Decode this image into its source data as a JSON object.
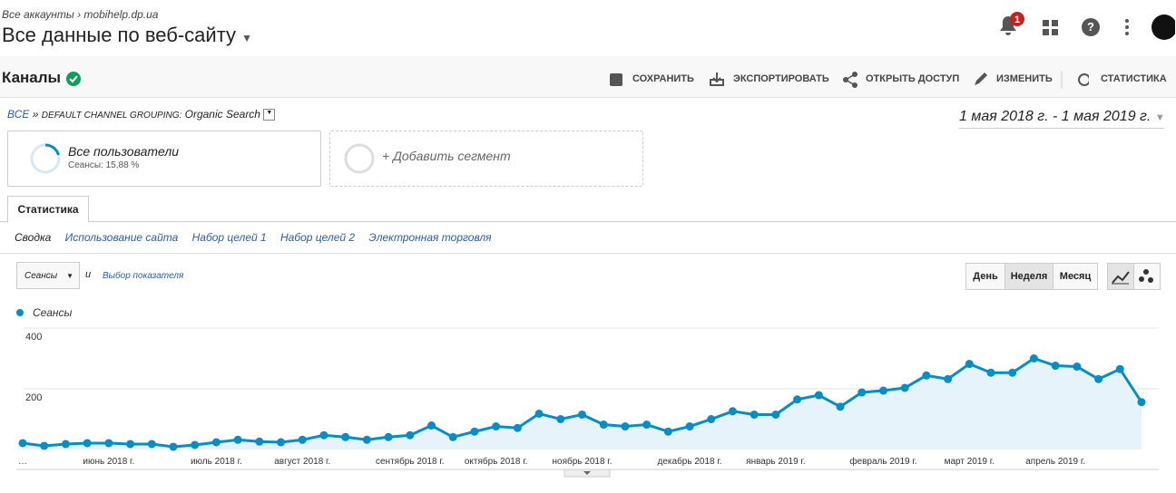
{
  "header": {
    "breadcrumb_root": "Все аккаунты",
    "breadcrumb_site": "mobihelp.dp.ua",
    "view": "Все данные по веб-сайту",
    "notifications": "1"
  },
  "toolbar": {
    "title": "Каналы",
    "actions": [
      "СОХРАНИТЬ",
      "ЭКСПОРТИРОВАТЬ",
      "ОТКРЫТЬ ДОСТУП",
      "ИЗМЕНИТЬ",
      "СТАТИСТИКА"
    ]
  },
  "filter": {
    "root": "ВСЕ",
    "separator": "»",
    "grouping": "DEFAULT CHANNEL GROUPING:",
    "value": "Organic Search"
  },
  "date_range": "1 мая 2018 г. - 1 мая 2019 г.",
  "segments": [
    {
      "name": "Все пользователи",
      "detail": "Сеансы: 15,88 %"
    },
    {
      "name": "+ Добавить сегмент"
    }
  ],
  "tab": "Статистика",
  "subtabs": [
    "Сводка",
    "Использование сайта",
    "Набор целей 1",
    "Набор целей 2",
    "Электронная торговля"
  ],
  "metric": {
    "selector": "Сеансы",
    "conjunction": "и",
    "add": "Выбор показателя"
  },
  "periods": [
    "День",
    "Неделя",
    "Месяц"
  ],
  "chart_data": {
    "type": "line",
    "categories": [
      "…",
      null,
      null,
      null,
      "июнь 2018 г.",
      null,
      null,
      null,
      null,
      "июль 2018 г.",
      null,
      null,
      null,
      "август 2018 г.",
      null,
      null,
      null,
      null,
      "сентябрь 2018 г.",
      null,
      null,
      null,
      "октябрь 2018 г.",
      null,
      null,
      null,
      "ноябрь 2018 г.",
      null,
      null,
      null,
      null,
      "декабрь 2018 г.",
      null,
      null,
      null,
      "январь 2019 г.",
      null,
      null,
      null,
      null,
      "февраль 2019 г.",
      null,
      null,
      null,
      "март 2019 г.",
      null,
      null,
      null,
      "апрель 2019 г.",
      null,
      null,
      null,
      null
    ],
    "series": [
      {
        "name": "Сеансы",
        "color": "#058dc7",
        "values": [
          21,
          12,
          18,
          21,
          21,
          18,
          18,
          9,
          15,
          24,
          32,
          26,
          24,
          32,
          47,
          41,
          32,
          41,
          47,
          79,
          41,
          59,
          76,
          71,
          118,
          100,
          115,
          82,
          76,
          82,
          59,
          76,
          100,
          126,
          115,
          115,
          165,
          179,
          141,
          188,
          194,
          203,
          244,
          232,
          282,
          253,
          253,
          300,
          276,
          273,
          232,
          265,
          156
        ]
      }
    ],
    "ylim": [
      0,
      400
    ],
    "yticks": [
      200,
      400
    ],
    "grid": true
  }
}
